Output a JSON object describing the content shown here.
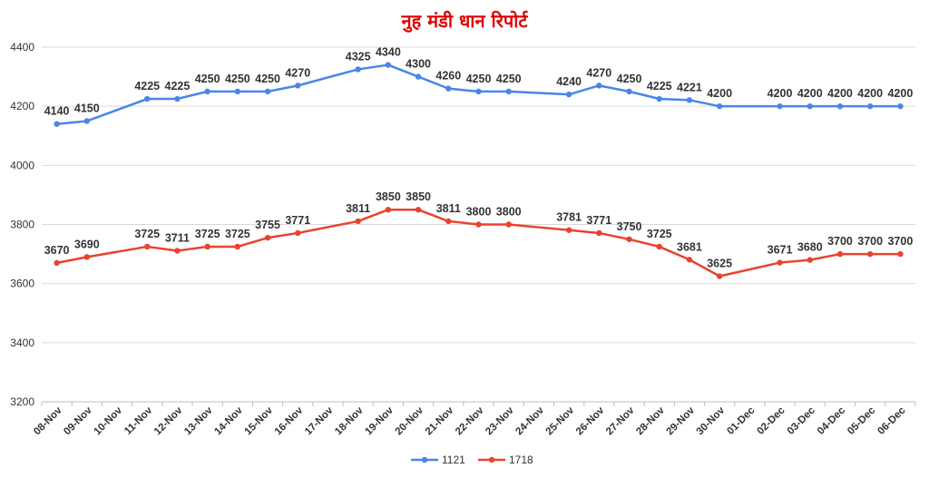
{
  "chart_data": {
    "type": "line",
    "title": "नुह मंडी धान रिपोर्ट",
    "xlabel": "",
    "ylabel": "",
    "ylim": [
      3200,
      4400
    ],
    "yticks": [
      3200,
      3400,
      3600,
      3800,
      4000,
      4200,
      4400
    ],
    "grid": true,
    "legend": "bottom",
    "categories": [
      "08-Nov",
      "09-Nov",
      "10-Nov",
      "11-Nov",
      "12-Nov",
      "13-Nov",
      "14-Nov",
      "15-Nov",
      "16-Nov",
      "17-Nov",
      "18-Nov",
      "19-Nov",
      "20-Nov",
      "21-Nov",
      "22-Nov",
      "23-Nov",
      "24-Nov",
      "25-Nov",
      "26-Nov",
      "27-Nov",
      "28-Nov",
      "29-Nov",
      "30-Nov",
      "01-Dec",
      "02-Dec",
      "03-Dec",
      "04-Dec",
      "05-Dec",
      "06-Dec"
    ],
    "series": [
      {
        "name": "1121",
        "color": "#4a86e8",
        "values": [
          4140,
          4150,
          null,
          4225,
          4225,
          4250,
          4250,
          4250,
          4270,
          null,
          4325,
          4340,
          4300,
          4260,
          4250,
          4250,
          null,
          4240,
          4270,
          4250,
          4225,
          4221,
          4200,
          null,
          4200,
          4200,
          4200,
          4200,
          4200
        ]
      },
      {
        "name": "1718",
        "color": "#e8432f",
        "values": [
          3670,
          3690,
          null,
          3725,
          3711,
          3725,
          3725,
          3755,
          3771,
          null,
          3811,
          3850,
          3850,
          3811,
          3800,
          3800,
          null,
          3781,
          3771,
          3750,
          3725,
          3681,
          3625,
          null,
          3671,
          3680,
          3700,
          3700,
          3700
        ]
      }
    ]
  }
}
